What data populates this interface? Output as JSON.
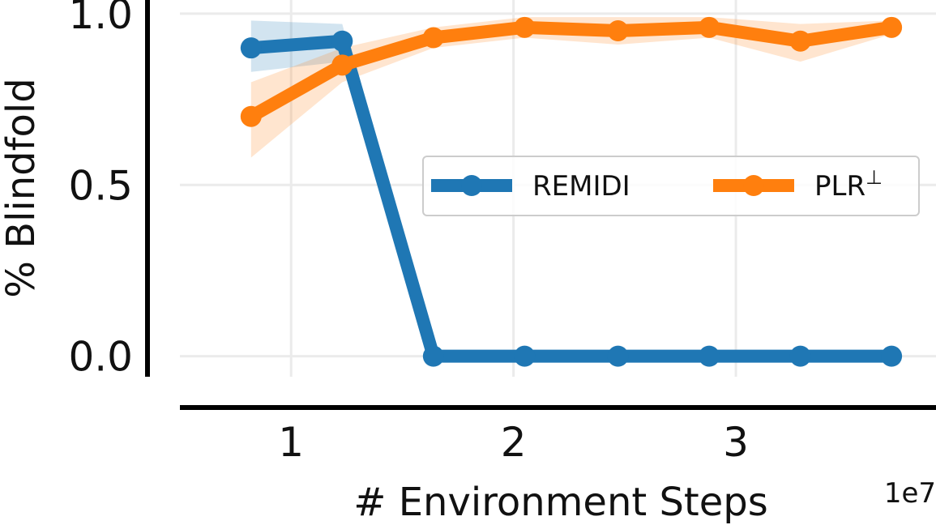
{
  "chart_data": {
    "type": "line",
    "xlabel": "# Environment Steps",
    "ylabel": "% Blindfold",
    "x_offset_label": "1e7",
    "xlim": [
      0.5,
      3.9
    ],
    "ylim": [
      -0.06,
      1.04
    ],
    "xticks": [
      1,
      2,
      3
    ],
    "yticks": [
      0.0,
      0.5,
      1.0
    ],
    "xtick_labels": [
      "1",
      "2",
      "3"
    ],
    "ytick_labels": [
      "0.0",
      "0.5",
      "1.0"
    ],
    "grid": true,
    "legend_position": "center-right",
    "x": [
      0.82,
      1.23,
      1.64,
      2.05,
      2.47,
      2.88,
      3.29,
      3.7
    ],
    "series": [
      {
        "name": "REMIDI",
        "color": "#1f77b4",
        "values": [
          0.9,
          0.92,
          0.0,
          0.0,
          0.0,
          0.0,
          0.0,
          0.0
        ],
        "band_low": [
          0.83,
          0.86,
          0.0,
          0.0,
          0.0,
          0.0,
          0.0,
          0.0
        ],
        "band_high": [
          0.98,
          0.97,
          0.0,
          0.0,
          0.0,
          0.0,
          0.0,
          0.0
        ]
      },
      {
        "name": "PLR",
        "name_superscript": "⊥",
        "color": "#ff7f0e",
        "values": [
          0.7,
          0.85,
          0.93,
          0.96,
          0.95,
          0.96,
          0.92,
          0.96
        ],
        "band_low": [
          0.58,
          0.8,
          0.9,
          0.93,
          0.91,
          0.93,
          0.86,
          0.94
        ],
        "band_high": [
          0.8,
          0.9,
          0.96,
          0.99,
          0.99,
          0.99,
          0.97,
          0.98
        ]
      }
    ]
  }
}
